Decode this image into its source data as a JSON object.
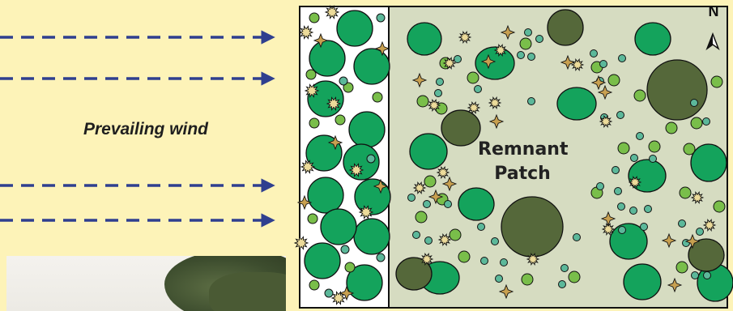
{
  "wind": {
    "label": "Prevailing wind"
  },
  "patch": {
    "line1": "Remnant",
    "line2": "Patch"
  },
  "north": {
    "label": "N"
  },
  "legend_colors": {
    "background": "#fdf3b8",
    "wind_arrow": "#2f3f8f",
    "patch_fill": "#d6dcc1",
    "tree_green": "#14a35c",
    "tree_dark": "#55683a",
    "shrub_light": "#79be4a",
    "seedling_teal": "#5cb89a",
    "star_plant": "#c8a050",
    "burst_plant": "#ecdb9a"
  },
  "photo": {
    "icon": "tree-photo"
  }
}
